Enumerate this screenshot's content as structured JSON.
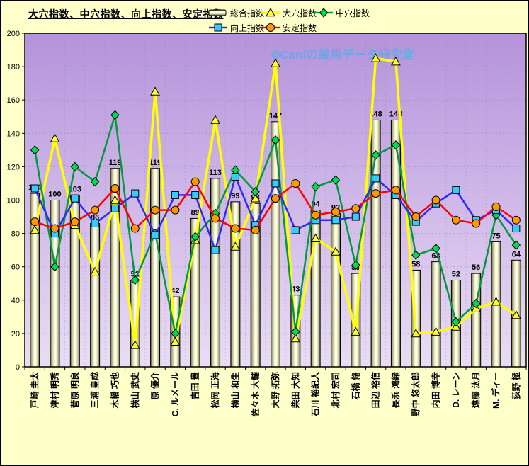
{
  "title": "大穴指数、中穴指数、向上指数、安定指数",
  "watermark": "©Caniの競馬データ研究室",
  "colors": {
    "background": "#FFFFC9",
    "plot_top": "#B593DB",
    "plot_bottom": "#EADDF6",
    "grid": "#8F7BA8",
    "watermark": "#55ACE6",
    "bar_edge": "#5F5F36",
    "bar_center": "#FFFFE8",
    "series_yellow": "#FFFF00",
    "series_green": "#009940",
    "series_green_marker": "#00DC50",
    "series_blue": "#2A2AFF",
    "series_blue_marker": "#33CCFF",
    "series_red": "#FF0000",
    "series_red_marker": "#FF9900"
  },
  "chart_data": {
    "type": "bar",
    "title": "大穴指数、中穴指数、向上指数、安定指数",
    "ylim": [
      0,
      200
    ],
    "y_ticks": [
      0,
      20,
      40,
      60,
      80,
      100,
      120,
      140,
      160,
      180,
      200
    ],
    "grid": true,
    "legend_position": "top-right",
    "categories": [
      "戸崎 圭太",
      "津村 明秀",
      "菅原 明良",
      "三浦 皇成",
      "木幡 巧也",
      "横山 武史",
      "原 優介",
      "C. ルメール",
      "吉田 豊",
      "松岡 正海",
      "横山 和生",
      "佐々木 大輔",
      "大野 拓弥",
      "柴田 大知",
      "石川 裕紀人",
      "北村 宏司",
      "石橋 脩",
      "田辺 裕信",
      "長浜 鴻緒",
      "野中 悠太郎",
      "内田 博幸",
      "D. レーン",
      "遠藤 汰月",
      "M. ディー",
      "荻野 極"
    ],
    "series": [
      {
        "name": "総合指数",
        "type": "bar",
        "marker": "bar",
        "labels_shown": true,
        "values": [
          104,
          100,
          103,
          86,
          119,
          52,
          119,
          42,
          89,
          113,
          99,
          98,
          147,
          43,
          94,
          92,
          56,
          148,
          148,
          58,
          63,
          52,
          56,
          75,
          64
        ]
      },
      {
        "name": "大穴指数",
        "type": "line",
        "marker": "triangle",
        "values": [
          82,
          137,
          85,
          57,
          100,
          13,
          165,
          15,
          76,
          148,
          72,
          101,
          182,
          17,
          77,
          69,
          21,
          185,
          183,
          20,
          21,
          24,
          35,
          39,
          31
        ]
      },
      {
        "name": "中穴指数",
        "type": "line",
        "marker": "diamond",
        "values": [
          130,
          60,
          120,
          111,
          151,
          52,
          80,
          20,
          78,
          92,
          118,
          105,
          136,
          21,
          108,
          112,
          61,
          127,
          133,
          67,
          71,
          27,
          38,
          91,
          73
        ]
      },
      {
        "name": "向上指数",
        "type": "line",
        "marker": "square",
        "values": [
          107,
          80,
          101,
          86,
          95,
          104,
          79,
          103,
          103,
          70,
          114,
          85,
          110,
          82,
          88,
          88,
          90,
          113,
          103,
          87,
          98,
          106,
          88,
          94,
          83
        ]
      },
      {
        "name": "安定指数",
        "type": "line",
        "marker": "circle",
        "values": [
          87,
          83,
          87,
          94,
          107,
          83,
          94,
          94,
          111,
          89,
          83,
          82,
          101,
          110,
          91,
          93,
          95,
          104,
          106,
          90,
          100,
          88,
          86,
          96,
          88
        ]
      }
    ]
  }
}
